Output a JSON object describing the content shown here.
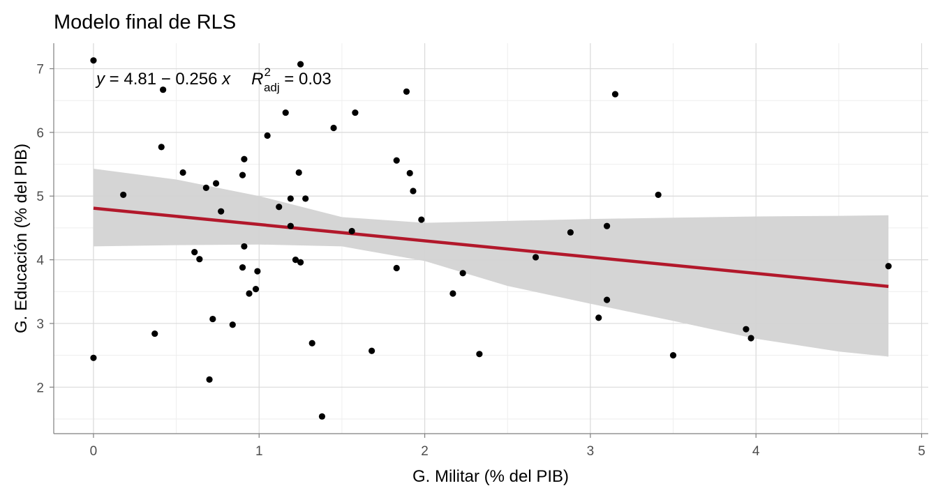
{
  "chart_data": {
    "type": "scatter",
    "title": "Modelo final de RLS",
    "xlabel": "G. Militar (% del PIB)",
    "ylabel": "G. Educación (% del PIB)",
    "xlim": [
      -0.24,
      5.04
    ],
    "ylim": [
      1.27,
      7.4
    ],
    "xticks": [
      0,
      1,
      2,
      3,
      4,
      5
    ],
    "xtick_labels": [
      "0",
      "1",
      "2",
      "3",
      "4",
      "5"
    ],
    "yticks": [
      2,
      3,
      4,
      5,
      6,
      7
    ],
    "ytick_labels": [
      "2",
      "3",
      "4",
      "5",
      "6",
      "7"
    ],
    "grid": true,
    "colors": {
      "points": "#000000",
      "fit_line": "#b2182b",
      "ribbon": "#d3d3d3",
      "grid_major": "#d9d9d9",
      "grid_minor": "#eeeeee",
      "axis": "#7f7f7f"
    },
    "regression": {
      "intercept": 4.81,
      "slope": -0.256,
      "equation": {
        "y_var": "y",
        "lhs": " = 4.81 − 0.256 ",
        "x_var": "x",
        "r_label": "R",
        "r_sup": "2",
        "r_sub": "adj",
        "r_value": " = 0.03"
      },
      "x_start": 0,
      "x_end": 4.8,
      "ribbon": [
        {
          "x": 0,
          "lower": 4.21,
          "upper": 5.43
        },
        {
          "x": 0.5,
          "lower": 4.23,
          "upper": 5.26
        },
        {
          "x": 1.0,
          "lower": 4.24,
          "upper": 5.0
        },
        {
          "x": 1.5,
          "lower": 4.21,
          "upper": 4.67
        },
        {
          "x": 2.0,
          "lower": 3.98,
          "upper": 4.58
        },
        {
          "x": 2.5,
          "lower": 3.59,
          "upper": 4.61
        },
        {
          "x": 3.0,
          "lower": 3.31,
          "upper": 4.64
        },
        {
          "x": 3.5,
          "lower": 3.04,
          "upper": 4.66
        },
        {
          "x": 4.0,
          "lower": 2.76,
          "upper": 4.68
        },
        {
          "x": 4.5,
          "lower": 2.56,
          "upper": 4.69
        },
        {
          "x": 4.8,
          "lower": 2.48,
          "upper": 4.7
        }
      ]
    },
    "points": [
      {
        "x": 0.0,
        "y": 7.13
      },
      {
        "x": 0.0,
        "y": 2.46
      },
      {
        "x": 0.18,
        "y": 5.02
      },
      {
        "x": 0.37,
        "y": 2.84
      },
      {
        "x": 0.41,
        "y": 5.77
      },
      {
        "x": 0.42,
        "y": 6.67
      },
      {
        "x": 0.54,
        "y": 5.37
      },
      {
        "x": 0.61,
        "y": 4.12
      },
      {
        "x": 0.64,
        "y": 4.01
      },
      {
        "x": 0.68,
        "y": 5.13
      },
      {
        "x": 0.7,
        "y": 2.12
      },
      {
        "x": 0.72,
        "y": 3.07
      },
      {
        "x": 0.74,
        "y": 5.2
      },
      {
        "x": 0.77,
        "y": 4.76
      },
      {
        "x": 0.84,
        "y": 2.98
      },
      {
        "x": 0.9,
        "y": 5.33
      },
      {
        "x": 0.9,
        "y": 3.88
      },
      {
        "x": 0.91,
        "y": 5.58
      },
      {
        "x": 0.91,
        "y": 4.21
      },
      {
        "x": 0.94,
        "y": 3.47
      },
      {
        "x": 0.98,
        "y": 3.54
      },
      {
        "x": 0.99,
        "y": 3.82
      },
      {
        "x": 1.05,
        "y": 5.95
      },
      {
        "x": 1.12,
        "y": 4.83
      },
      {
        "x": 1.16,
        "y": 6.31
      },
      {
        "x": 1.19,
        "y": 4.96
      },
      {
        "x": 1.19,
        "y": 4.53
      },
      {
        "x": 1.22,
        "y": 4.0
      },
      {
        "x": 1.24,
        "y": 5.37
      },
      {
        "x": 1.25,
        "y": 3.96
      },
      {
        "x": 1.25,
        "y": 7.07
      },
      {
        "x": 1.28,
        "y": 4.96
      },
      {
        "x": 1.32,
        "y": 2.69
      },
      {
        "x": 1.38,
        "y": 1.54
      },
      {
        "x": 1.45,
        "y": 6.07
      },
      {
        "x": 1.56,
        "y": 4.45
      },
      {
        "x": 1.58,
        "y": 6.31
      },
      {
        "x": 1.68,
        "y": 2.57
      },
      {
        "x": 1.83,
        "y": 5.56
      },
      {
        "x": 1.83,
        "y": 3.87
      },
      {
        "x": 1.89,
        "y": 6.64
      },
      {
        "x": 1.91,
        "y": 5.36
      },
      {
        "x": 1.93,
        "y": 5.08
      },
      {
        "x": 1.98,
        "y": 4.63
      },
      {
        "x": 2.17,
        "y": 3.47
      },
      {
        "x": 2.23,
        "y": 3.79
      },
      {
        "x": 2.33,
        "y": 2.52
      },
      {
        "x": 2.67,
        "y": 4.04
      },
      {
        "x": 2.88,
        "y": 4.43
      },
      {
        "x": 3.05,
        "y": 3.09
      },
      {
        "x": 3.1,
        "y": 3.37
      },
      {
        "x": 3.1,
        "y": 4.53
      },
      {
        "x": 3.15,
        "y": 6.6
      },
      {
        "x": 3.41,
        "y": 5.02
      },
      {
        "x": 3.5,
        "y": 2.5
      },
      {
        "x": 3.94,
        "y": 2.91
      },
      {
        "x": 3.97,
        "y": 2.77
      },
      {
        "x": 4.8,
        "y": 3.9
      }
    ]
  }
}
